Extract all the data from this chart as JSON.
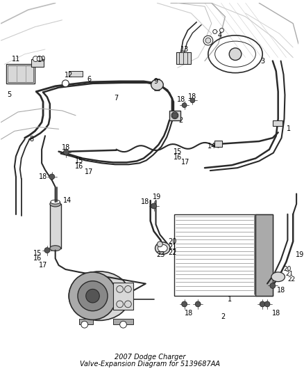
{
  "title_line1": "2007 Dodge Charger",
  "title_line2": "Valve-Expansion Diagram for 5139687AA",
  "title_fontsize": 7,
  "bg_color": "#ffffff",
  "line_color": "#2a2a2a",
  "label_color": "#000000",
  "fig_width": 4.38,
  "fig_height": 5.33,
  "dpi": 100,
  "gray_light": "#d8d8d8",
  "gray_mid": "#aaaaaa",
  "gray_dark": "#555555",
  "label_fontsize": 7.0
}
